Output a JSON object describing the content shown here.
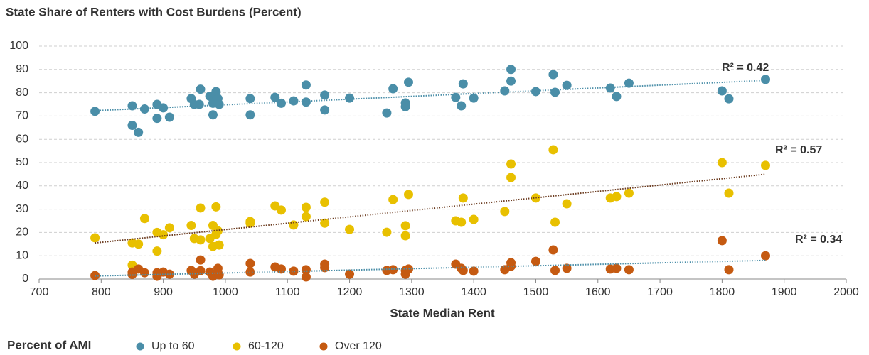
{
  "chart_data": {
    "type": "scatter",
    "title": "State Share of Renters with Cost Burdens (Percent)",
    "xlabel": "State Median Rent",
    "legend_title": "Percent of AMI",
    "xlim": [
      700,
      2000
    ],
    "xticks": [
      700,
      800,
      900,
      1000,
      1100,
      1200,
      1300,
      1400,
      1500,
      1600,
      1700,
      1800,
      1900,
      2000
    ],
    "ylim": [
      0,
      100
    ],
    "yticks": [
      0,
      10,
      20,
      30,
      40,
      50,
      60,
      70,
      80,
      90,
      100
    ],
    "grid": true,
    "legend": "bottom-left",
    "series": [
      {
        "name": "Up to 60",
        "color": "#4a8ea8",
        "trend_color": "#4a8ea8",
        "r2_label": "R² = 0.42",
        "trend_x": [
          790,
          1870
        ],
        "trend_y": [
          72.3,
          85.3
        ],
        "x": [
          790,
          850,
          850,
          860,
          870,
          890,
          890,
          900,
          910,
          945,
          950,
          958,
          960,
          975,
          980,
          980,
          985,
          985,
          988,
          990,
          1040,
          1040,
          1080,
          1090,
          1110,
          1130,
          1130,
          1160,
          1160,
          1200,
          1260,
          1270,
          1290,
          1290,
          1295,
          1371,
          1380,
          1383,
          1400,
          1450,
          1460,
          1460,
          1500,
          1528,
          1531,
          1550,
          1620,
          1630,
          1650,
          1800,
          1811,
          1870
        ],
        "values": [
          72,
          74.4,
          66,
          63,
          73,
          75,
          69,
          73.5,
          69.5,
          77.5,
          75,
          75,
          81.5,
          78.5,
          70.5,
          75.5,
          79,
          80.5,
          77.5,
          75,
          77.5,
          70.5,
          78,
          75.5,
          76.5,
          83.3,
          76,
          79,
          72.6,
          77.7,
          71.3,
          81.7,
          75.6,
          74,
          84.5,
          78,
          74.4,
          83.8,
          77.7,
          80.8,
          85,
          90,
          80.5,
          87.8,
          80.2,
          83.2,
          82,
          78.4,
          84.1,
          80.8,
          77.4,
          85.7
        ]
      },
      {
        "name": "60-120",
        "color": "#e8c000",
        "trend_color": "#6b3b1f",
        "r2_label": "R² = 0.57",
        "trend_x": [
          790,
          1870
        ],
        "trend_y": [
          15.5,
          45
        ],
        "x": [
          790,
          850,
          860,
          850,
          870,
          890,
          890,
          900,
          910,
          945,
          950,
          960,
          960,
          975,
          980,
          980,
          985,
          988,
          985,
          990,
          1040,
          1040,
          1080,
          1090,
          1110,
          1130,
          1130,
          1160,
          1160,
          1200,
          1260,
          1270,
          1290,
          1290,
          1295,
          1371,
          1380,
          1383,
          1400,
          1450,
          1460,
          1460,
          1500,
          1528,
          1531,
          1550,
          1620,
          1630,
          1650,
          1800,
          1811,
          1870
        ],
        "values": [
          17.7,
          15.5,
          15,
          6,
          26,
          20,
          12,
          19,
          22,
          23,
          17.4,
          16.8,
          30.5,
          17.4,
          23,
          14,
          19.2,
          20.7,
          31,
          14.6,
          24.7,
          24,
          31.4,
          29.6,
          23.2,
          30.8,
          26.8,
          33,
          24,
          21.3,
          20.1,
          34.1,
          22.9,
          18.6,
          36.3,
          25,
          24.4,
          34.8,
          25.6,
          29,
          49.4,
          43.6,
          34.8,
          55.5,
          24.4,
          32.3,
          34.8,
          35.4,
          36.9,
          50,
          36.9,
          48.8
        ]
      },
      {
        "name": "Over 120",
        "color": "#c55a11",
        "trend_color": "#4a8ea8",
        "r2_label": "R² = 0.34",
        "trend_x": [
          790,
          1870
        ],
        "trend_y": [
          1.3,
          8
        ],
        "x": [
          790,
          850,
          850,
          860,
          870,
          890,
          890,
          900,
          910,
          945,
          950,
          960,
          960,
          975,
          980,
          985,
          988,
          990,
          1040,
          1040,
          1080,
          1090,
          1110,
          1130,
          1130,
          1160,
          1160,
          1200,
          1260,
          1270,
          1290,
          1290,
          1295,
          1371,
          1380,
          1383,
          1400,
          1450,
          1460,
          1460,
          1500,
          1528,
          1531,
          1550,
          1620,
          1630,
          1650,
          1800,
          1811,
          1870
        ],
        "values": [
          1.5,
          2,
          3,
          4.3,
          2.7,
          1.2,
          2.7,
          3,
          2.1,
          3.7,
          2.1,
          8.2,
          3.6,
          3,
          1.2,
          2.4,
          4.6,
          1.8,
          6.7,
          3,
          5.2,
          4.3,
          3.4,
          4,
          0.9,
          6.4,
          4.9,
          2.1,
          3.7,
          4,
          2.1,
          3.7,
          4.3,
          6.4,
          4.6,
          3.7,
          3.4,
          4,
          7,
          5.5,
          7.6,
          12.5,
          3.7,
          4.6,
          4.3,
          4.6,
          4,
          16.5,
          4,
          10
        ]
      }
    ]
  }
}
